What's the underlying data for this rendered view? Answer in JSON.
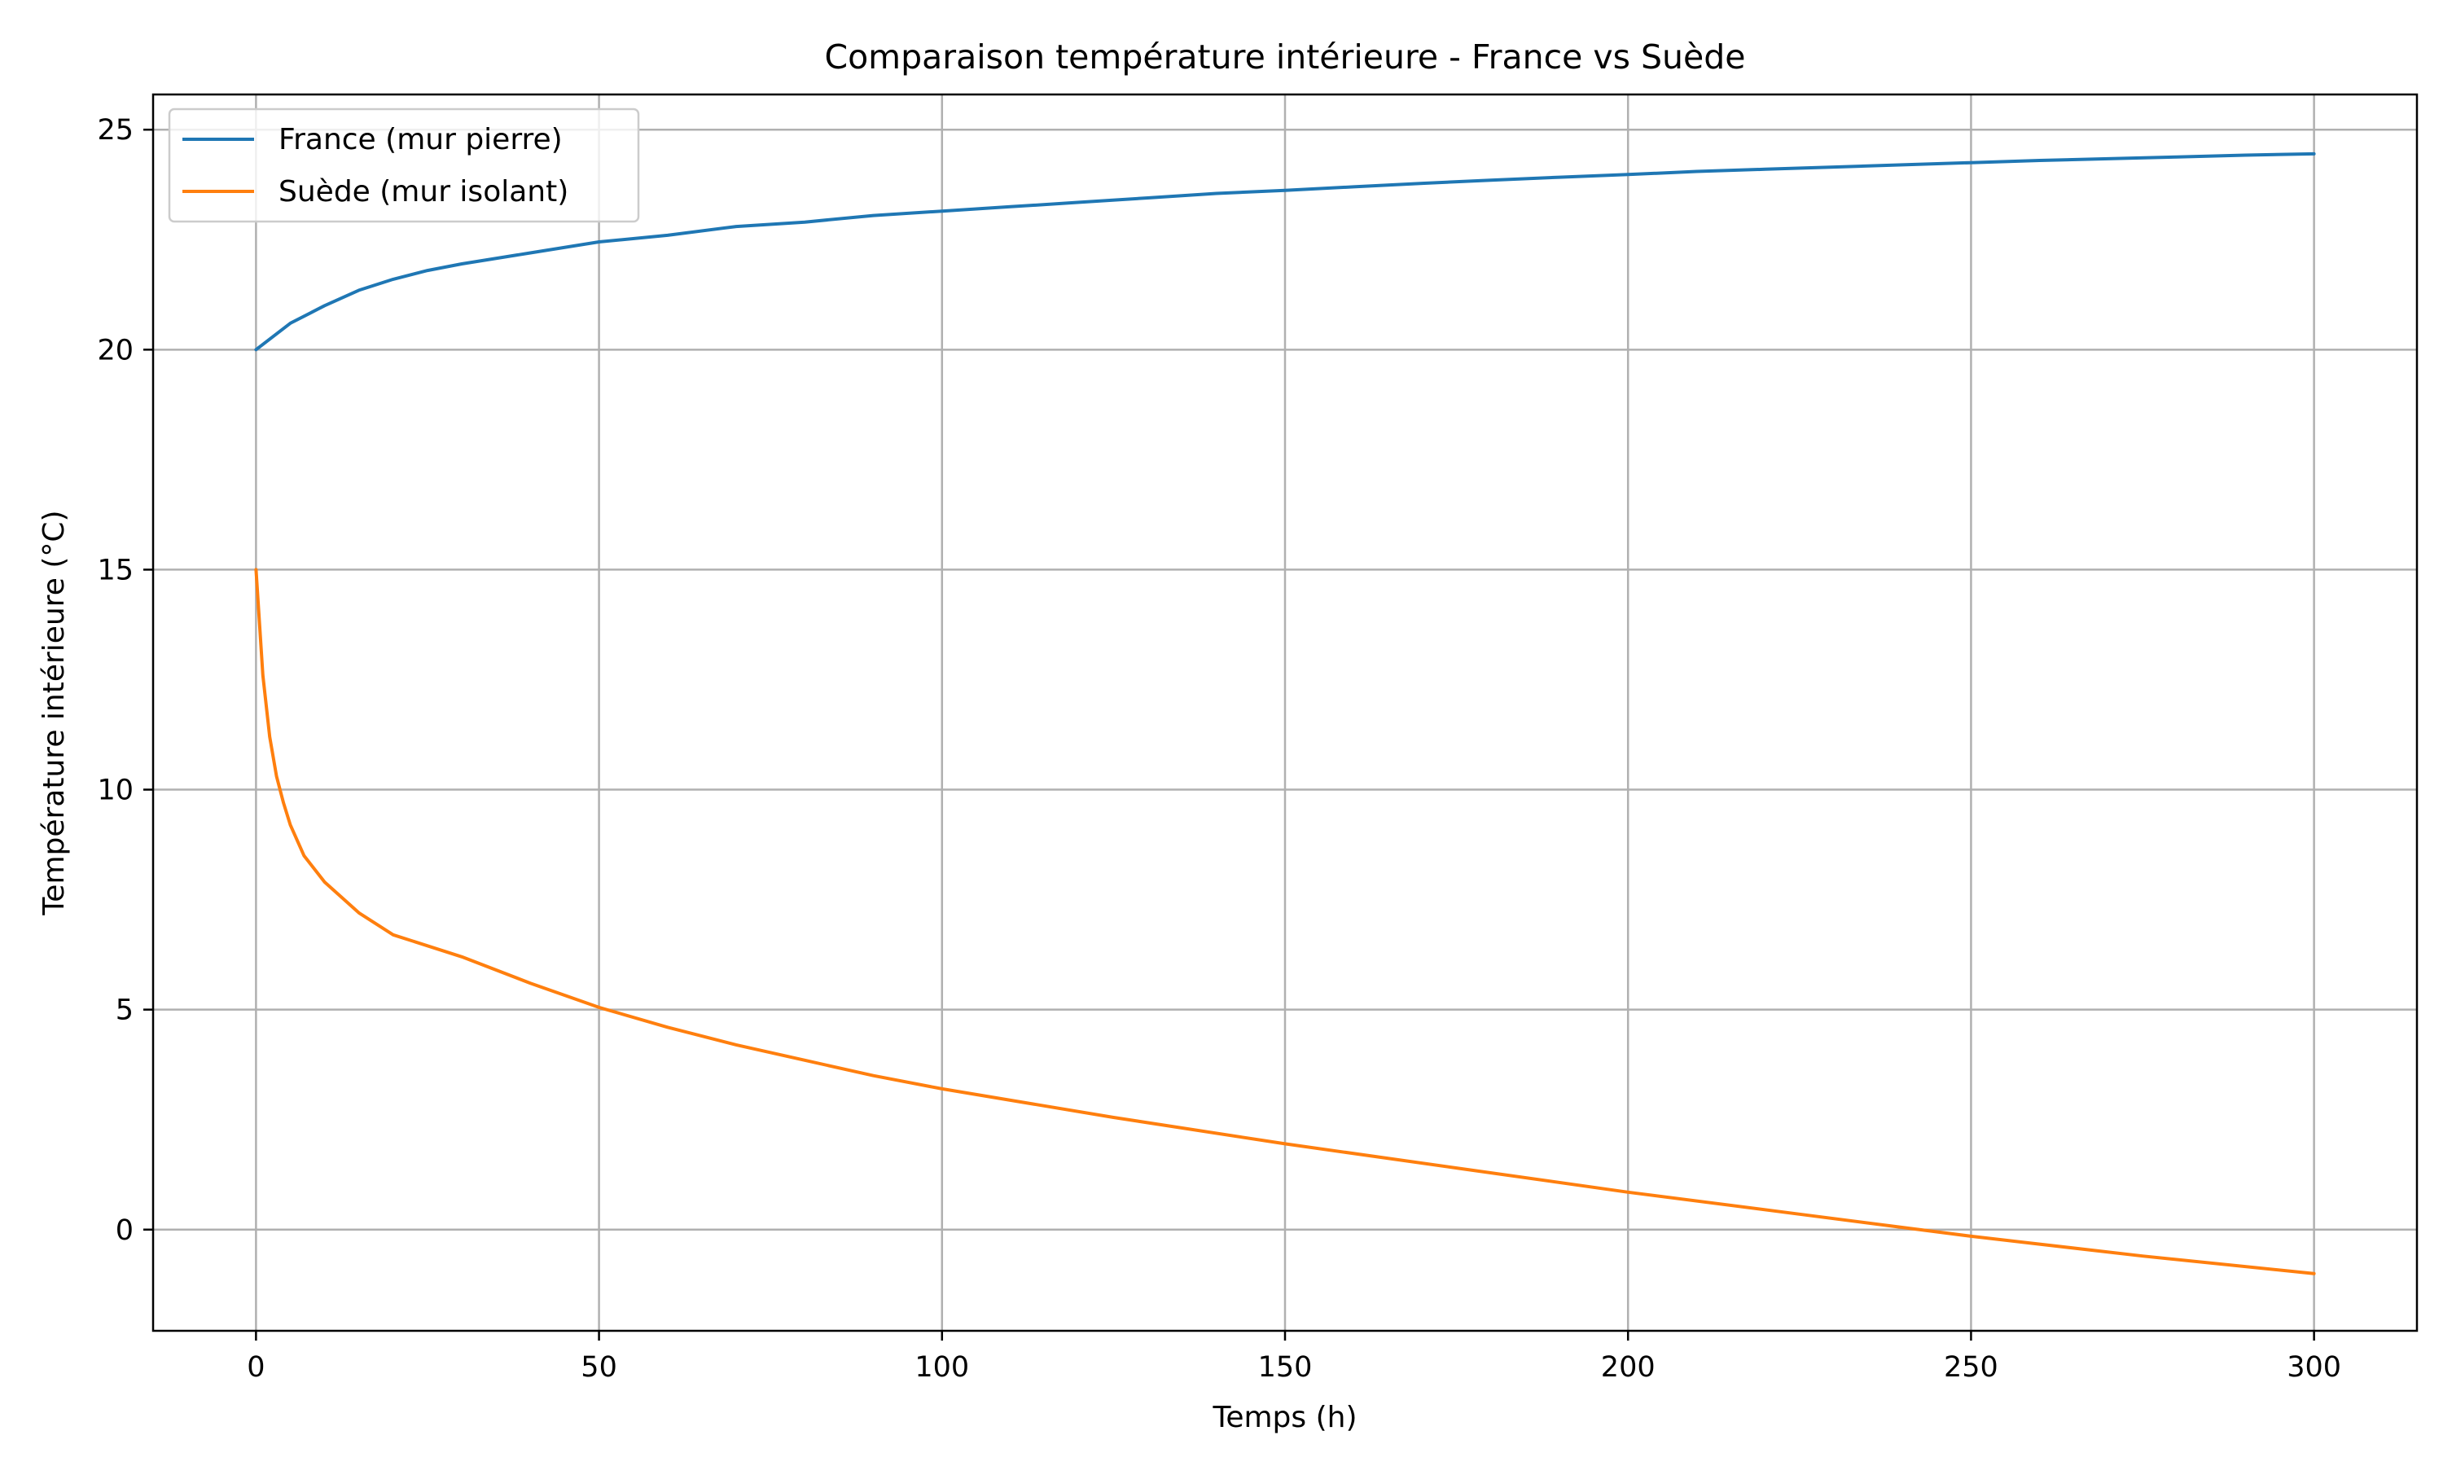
{
  "chart_data": {
    "type": "line",
    "title": "Comparaison température intérieure - France vs Suède",
    "xlabel": "Temps (h)",
    "ylabel": "Température intérieure (°C)",
    "xlim": [
      -15,
      315
    ],
    "ylim": [
      -2.3,
      25.8
    ],
    "xticks": [
      0,
      50,
      100,
      150,
      200,
      250,
      300
    ],
    "yticks": [
      0,
      5,
      10,
      15,
      20,
      25
    ],
    "grid": true,
    "legend_position": "top-left",
    "series": [
      {
        "name": "France (mur pierre)",
        "color": "#1f77b4",
        "x": [
          0,
          5,
          10,
          15,
          20,
          25,
          30,
          40,
          50,
          60,
          70,
          80,
          90,
          100,
          110,
          120,
          130,
          140,
          150,
          160,
          170,
          180,
          190,
          200,
          210,
          220,
          230,
          240,
          250,
          260,
          270,
          280,
          290,
          300
        ],
        "y": [
          20.0,
          20.6,
          21.0,
          21.35,
          21.6,
          21.8,
          21.95,
          22.2,
          22.45,
          22.6,
          22.8,
          22.9,
          23.05,
          23.15,
          23.25,
          23.35,
          23.45,
          23.55,
          23.62,
          23.7,
          23.78,
          23.85,
          23.92,
          23.98,
          24.05,
          24.1,
          24.15,
          24.2,
          24.25,
          24.3,
          24.34,
          24.38,
          24.42,
          24.45
        ]
      },
      {
        "name": "Suède (mur isolant)",
        "color": "#ff7f0e",
        "x": [
          0,
          1,
          2,
          3,
          4,
          5,
          7,
          10,
          15,
          20,
          30,
          40,
          50,
          60,
          70,
          80,
          90,
          100,
          125,
          150,
          175,
          200,
          225,
          250,
          275,
          300
        ],
        "y": [
          15.0,
          12.6,
          11.2,
          10.3,
          9.7,
          9.2,
          8.5,
          7.9,
          7.2,
          6.7,
          6.2,
          5.6,
          5.05,
          4.6,
          4.2,
          3.85,
          3.5,
          3.2,
          2.55,
          1.95,
          1.4,
          0.85,
          0.35,
          -0.15,
          -0.6,
          -1.0
        ]
      }
    ]
  }
}
